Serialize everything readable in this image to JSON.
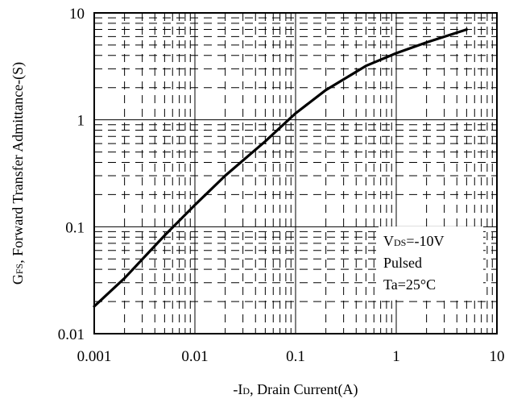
{
  "chart_data": {
    "type": "line",
    "title": "",
    "x_scale": "log",
    "y_scale": "log",
    "xlim": [
      0.001,
      10
    ],
    "ylim": [
      0.01,
      10
    ],
    "xlabel": {
      "prefix": "-I",
      "sub": "D",
      "suffix": ", Drain Current(A)"
    },
    "ylabel": {
      "prefix": "G",
      "sub": "FS",
      "suffix": ", Forward Transfer Admittance-(S)"
    },
    "x_ticks": [
      {
        "value": 0.001,
        "label": "0.001"
      },
      {
        "value": 0.01,
        "label": "0.01"
      },
      {
        "value": 0.1,
        "label": "0.1"
      },
      {
        "value": 1,
        "label": "1"
      },
      {
        "value": 10,
        "label": "10"
      }
    ],
    "y_ticks": [
      {
        "value": 0.01,
        "label": "0.01"
      },
      {
        "value": 0.1,
        "label": "0.1"
      },
      {
        "value": 1,
        "label": "1"
      },
      {
        "value": 10,
        "label": "10"
      }
    ],
    "grid": {
      "major": true,
      "minor": "dashed"
    },
    "series": [
      {
        "x": [
          0.001,
          0.002,
          0.005,
          0.01,
          0.02,
          0.05,
          0.1,
          0.2,
          0.5,
          1,
          2,
          5
        ],
        "y": [
          0.018,
          0.033,
          0.083,
          0.16,
          0.3,
          0.63,
          1.15,
          1.9,
          3.2,
          4.2,
          5.3,
          7
        ]
      }
    ],
    "annotation": {
      "lines": [
        {
          "prefix": "V",
          "sub": "DS",
          "suffix": "=-10V"
        },
        {
          "prefix": "Pulsed",
          "sub": "",
          "suffix": ""
        },
        {
          "prefix": "Ta=25",
          "sub": "",
          "suffix": "°C"
        }
      ],
      "placement": "lower-right"
    }
  }
}
